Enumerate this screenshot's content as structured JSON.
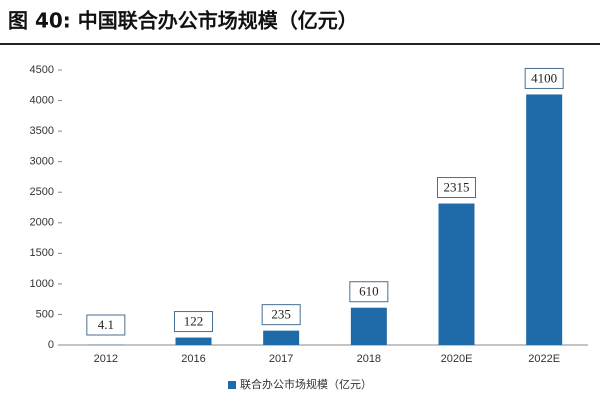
{
  "chart_data": {
    "type": "bar",
    "title": "图 40:  中国联合办公市场规模（亿元）",
    "categories": [
      "2012",
      "2016",
      "2017",
      "2018",
      "2020E",
      "2022E"
    ],
    "series": [
      {
        "name": "联合办公市场规模（亿元）",
        "color": "#1f6aa8",
        "values": [
          4.1,
          122,
          235,
          610,
          2315,
          4100
        ]
      }
    ],
    "ylim": [
      0,
      4500
    ],
    "yticks": [
      0,
      500,
      1000,
      1500,
      2000,
      2500,
      3000,
      3500,
      4000,
      4500
    ],
    "grid": false,
    "legend": "bottom"
  }
}
